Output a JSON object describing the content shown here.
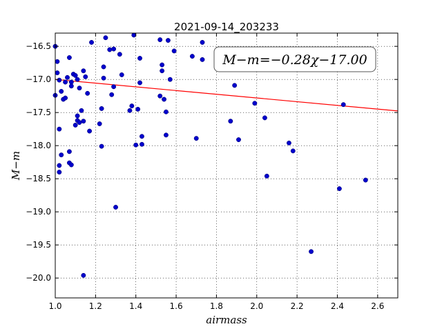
{
  "chart_data": {
    "type": "scatter",
    "title": "2021-09-14_203233",
    "xlabel": "airmass",
    "ylabel": "M−m",
    "xlim": [
      1.0,
      2.7
    ],
    "ylim": [
      -20.3,
      -16.3
    ],
    "y_inverted": true,
    "grid": true,
    "xticks": [
      1.0,
      1.2,
      1.4,
      1.6,
      1.8,
      2.0,
      2.2,
      2.4,
      2.6
    ],
    "xtick_labels": [
      "1.0",
      "1.2",
      "1.4",
      "1.6",
      "1.8",
      "2.0",
      "2.2",
      "2.4",
      "2.6"
    ],
    "yticks": [
      -16.5,
      -17.0,
      -17.5,
      -18.0,
      -18.5,
      -19.0,
      -19.5,
      -20.0
    ],
    "ytick_labels": [
      "−16.5",
      "−17.0",
      "−17.5",
      "−18.0",
      "−18.5",
      "−19.0",
      "−19.5",
      "−20.0"
    ],
    "annotation": "M−m=−0.28χ−17.00",
    "annotation_position": "top-right",
    "fit": {
      "slope": -0.28,
      "intercept": -17.0,
      "color": "#ff0000"
    },
    "point_color": "#0000cc",
    "points": [
      [
        1.0,
        -16.5
      ],
      [
        1.01,
        -16.73
      ],
      [
        1.01,
        -16.9
      ],
      [
        1.0,
        -17.24
      ],
      [
        1.02,
        -17.01
      ],
      [
        1.03,
        -17.18
      ],
      [
        1.04,
        -17.3
      ],
      [
        1.05,
        -17.28
      ],
      [
        1.05,
        -17.04
      ],
      [
        1.06,
        -16.97
      ],
      [
        1.07,
        -16.67
      ],
      [
        1.08,
        -17.04
      ],
      [
        1.08,
        -17.1
      ],
      [
        1.09,
        -16.92
      ],
      [
        1.1,
        -16.94
      ],
      [
        1.11,
        -17.0
      ],
      [
        1.12,
        -17.13
      ],
      [
        1.14,
        -16.87
      ],
      [
        1.15,
        -16.96
      ],
      [
        1.16,
        -17.21
      ],
      [
        1.18,
        -16.44
      ],
      [
        1.02,
        -17.75
      ],
      [
        1.02,
        -18.3
      ],
      [
        1.02,
        -18.4
      ],
      [
        1.03,
        -18.14
      ],
      [
        1.07,
        -18.09
      ],
      [
        1.07,
        -18.26
      ],
      [
        1.08,
        -18.29
      ],
      [
        1.1,
        -17.69
      ],
      [
        1.11,
        -17.62
      ],
      [
        1.11,
        -17.55
      ],
      [
        1.12,
        -17.65
      ],
      [
        1.13,
        -17.47
      ],
      [
        1.14,
        -17.63
      ],
      [
        1.17,
        -17.78
      ],
      [
        1.14,
        -19.96
      ],
      [
        1.22,
        -17.67
      ],
      [
        1.23,
        -18.01
      ],
      [
        1.23,
        -17.44
      ],
      [
        1.24,
        -16.81
      ],
      [
        1.24,
        -16.98
      ],
      [
        1.25,
        -16.37
      ],
      [
        1.27,
        -16.55
      ],
      [
        1.28,
        -17.23
      ],
      [
        1.29,
        -17.11
      ],
      [
        1.29,
        -16.54
      ],
      [
        1.3,
        -18.93
      ],
      [
        1.32,
        -16.62
      ],
      [
        1.33,
        -16.93
      ],
      [
        1.37,
        -17.47
      ],
      [
        1.38,
        -17.4
      ],
      [
        1.39,
        -16.33
      ],
      [
        1.4,
        -17.99
      ],
      [
        1.41,
        -17.45
      ],
      [
        1.42,
        -17.05
      ],
      [
        1.42,
        -16.68
      ],
      [
        1.43,
        -17.98
      ],
      [
        1.43,
        -17.86
      ],
      [
        1.52,
        -16.4
      ],
      [
        1.52,
        -17.25
      ],
      [
        1.53,
        -16.87
      ],
      [
        1.53,
        -16.78
      ],
      [
        1.54,
        -17.3
      ],
      [
        1.55,
        -17.49
      ],
      [
        1.55,
        -17.84
      ],
      [
        1.56,
        -16.41
      ],
      [
        1.57,
        -17.0
      ],
      [
        1.59,
        -16.57
      ],
      [
        1.68,
        -16.65
      ],
      [
        1.7,
        -17.89
      ],
      [
        1.73,
        -16.44
      ],
      [
        1.73,
        -16.7
      ],
      [
        1.87,
        -17.63
      ],
      [
        1.89,
        -17.09
      ],
      [
        1.91,
        -17.91
      ],
      [
        1.99,
        -17.36
      ],
      [
        2.04,
        -17.58
      ],
      [
        2.05,
        -18.46
      ],
      [
        2.16,
        -17.96
      ],
      [
        2.18,
        -18.08
      ],
      [
        2.27,
        -19.6
      ],
      [
        2.41,
        -18.65
      ],
      [
        2.43,
        -17.38
      ],
      [
        2.54,
        -18.52
      ]
    ]
  }
}
